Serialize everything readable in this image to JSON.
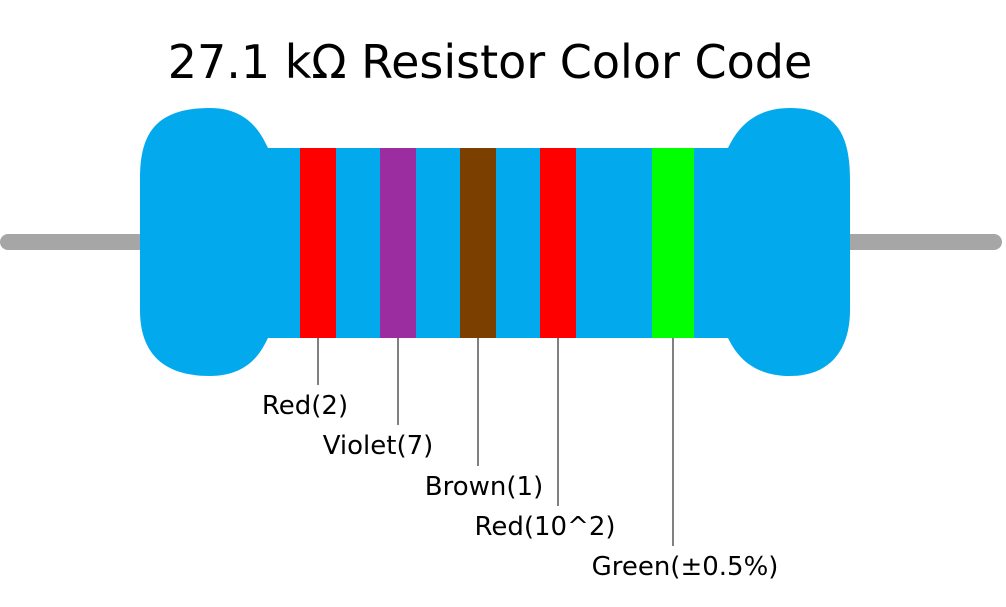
{
  "title": "27.1 kΩ Resistor Color Code",
  "bands": [
    {
      "label": "Red(2)",
      "color": "#ff0000"
    },
    {
      "label": "Violet(7)",
      "color": "#9b2da1"
    },
    {
      "label": "Brown(1)",
      "color": "#7b3f00"
    },
    {
      "label": "Red(10^2)",
      "color": "#ff0000"
    },
    {
      "label": "Green(±0.5%)",
      "color": "#00ff00"
    }
  ]
}
